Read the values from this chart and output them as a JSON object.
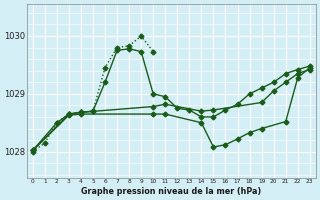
{
  "background_color": "#d4eef5",
  "grid_color": "#ffffff",
  "line_color": "#1a5c1a",
  "title": "Graphe pression niveau de la mer (hPa)",
  "ylabel_ticks": [
    1028,
    1029,
    1030
  ],
  "xlim": [
    -0.5,
    23.5
  ],
  "ylim": [
    1027.55,
    1030.55
  ],
  "series": [
    {
      "x": [
        0,
        1,
        2,
        3,
        4,
        5,
        6,
        7,
        8,
        9,
        10
      ],
      "y": [
        1028.0,
        1028.15,
        1028.5,
        1028.65,
        1028.68,
        1028.7,
        1029.45,
        1029.8,
        1029.83,
        1030.0,
        1029.73
      ],
      "marker": "D",
      "markersize": 2.5,
      "linewidth": 1.0,
      "linestyle": "dotted"
    },
    {
      "x": [
        0,
        2,
        3,
        4,
        5,
        6,
        7,
        8,
        9,
        10,
        11,
        12,
        13,
        14,
        15,
        16,
        17,
        18,
        19,
        20,
        21,
        22,
        23
      ],
      "y": [
        1028.02,
        1028.5,
        1028.65,
        1028.68,
        1028.7,
        1029.2,
        1029.75,
        1029.78,
        1029.73,
        1029.0,
        1028.95,
        1028.75,
        1028.72,
        1028.6,
        1028.6,
        1028.72,
        1028.82,
        1029.0,
        1029.1,
        1029.2,
        1029.35,
        1029.42,
        1029.48
      ],
      "marker": "D",
      "markersize": 2.5,
      "linewidth": 1.0,
      "linestyle": "solid"
    },
    {
      "x": [
        0,
        3,
        4,
        10,
        11,
        14,
        15,
        19,
        20,
        21,
        22,
        23
      ],
      "y": [
        1028.02,
        1028.65,
        1028.68,
        1028.78,
        1028.82,
        1028.7,
        1028.72,
        1028.85,
        1029.05,
        1029.2,
        1029.35,
        1029.42
      ],
      "marker": "D",
      "markersize": 2.5,
      "linewidth": 1.0,
      "linestyle": "solid"
    },
    {
      "x": [
        0,
        3,
        4,
        10,
        11,
        14,
        15,
        16,
        17,
        18,
        19,
        21,
        22,
        23
      ],
      "y": [
        1028.02,
        1028.63,
        1028.65,
        1028.65,
        1028.65,
        1028.5,
        1028.08,
        1028.12,
        1028.22,
        1028.33,
        1028.4,
        1028.52,
        1029.28,
        1029.45
      ],
      "marker": "D",
      "markersize": 2.5,
      "linewidth": 1.0,
      "linestyle": "solid"
    }
  ]
}
